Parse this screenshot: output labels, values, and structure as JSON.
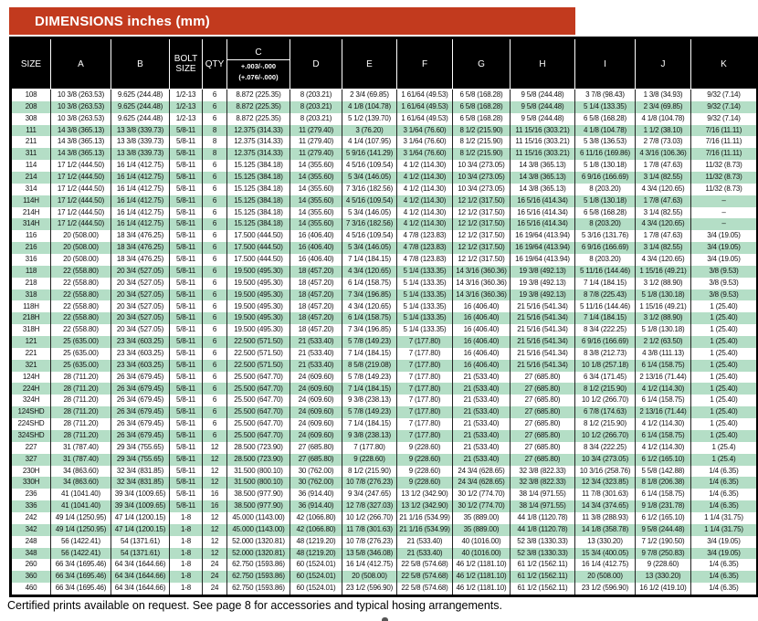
{
  "banner": {
    "title": "DIMENSIONS inches (mm)",
    "color": "#c23a1e"
  },
  "table": {
    "stripe_color": "#b4dec6",
    "headers": [
      "SIZE",
      "A",
      "B",
      "BOLT SIZE",
      "QTY",
      "C",
      "D",
      "E",
      "F",
      "G",
      "H",
      "I",
      "J",
      "K"
    ],
    "c_tolerance": [
      "+.003/-.000",
      "(+.076/-.000)"
    ],
    "rows": [
      [
        "108",
        "10 3/8 (263.53)",
        "9.625 (244.48)",
        "1/2-13",
        "6",
        "8.872 (225.35)",
        "8 (203.21)",
        "2 3/4 (69.85)",
        "1 61/64 (49.53)",
        "6 5/8 (168.28)",
        "9 5/8 (244.48)",
        "3 7/8 (98.43)",
        "1 3/8 (34.93)",
        "9/32 (7.14)"
      ],
      [
        "208",
        "10 3/8 (263.53)",
        "9.625 (244.48)",
        "1/2-13",
        "6",
        "8.872 (225.35)",
        "8 (203.21)",
        "4 1/8 (104.78)",
        "1 61/64 (49.53)",
        "6 5/8 (168.28)",
        "9 5/8 (244.48)",
        "5 1/4 (133.35)",
        "2 3/4 (69.85)",
        "9/32 (7.14)"
      ],
      [
        "308",
        "10 3/8 (263.53)",
        "9.625 (244.48)",
        "1/2-13",
        "6",
        "8.872 (225.35)",
        "8 (203.21)",
        "5 1/2 (139.70)",
        "1 61/64 (49.53)",
        "6 5/8 (168.28)",
        "9 5/8 (244.48)",
        "6 5/8 (168.28)",
        "4 1/8 (104.78)",
        "9/32 (7.14)"
      ],
      [
        "111",
        "14 3/8 (365.13)",
        "13 3/8 (339.73)",
        "5/8-11",
        "8",
        "12.375 (314.33)",
        "11 (279.40)",
        "3 (76.20)",
        "3 1/64 (76.60)",
        "8 1/2 (215.90)",
        "11 15/16 (303.21)",
        "4 1/8 (104.78)",
        "1 1/2 (38.10)",
        "7/16 (11.11)"
      ],
      [
        "211",
        "14 3/8 (365.13)",
        "13 3/8 (339.73)",
        "5/8-11",
        "8",
        "12.375 (314.33)",
        "11 (279.40)",
        "4 1/4 (107.95)",
        "3 1/64 (76.60)",
        "8 1/2 (215.90)",
        "11 15/16 (303.21)",
        "5 3/8 (136.53)",
        "2 7/8 (73.03)",
        "7/16 (11.11)"
      ],
      [
        "311",
        "14 3/8 (365.13)",
        "13 3/8 (339.73)",
        "5/8-11",
        "8",
        "12.375 (314.33)",
        "11 (279.40)",
        "5 9/16 (141.29)",
        "3 1/64 (76.60)",
        "8 1/2 (215.90)",
        "11 15/16 (303.21)",
        "6 11/16 (169.86)",
        "4 3/16 (106.36)",
        "7/16 (11.11)"
      ],
      [
        "114",
        "17 1/2 (444.50)",
        "16 1/4 (412.75)",
        "5/8-11",
        "6",
        "15.125 (384.18)",
        "14 (355.60)",
        "4 5/16 (109.54)",
        "4 1/2 (114.30)",
        "10 3/4 (273.05)",
        "14 3/8 (365.13)",
        "5 1/8 (130.18)",
        "1 7/8 (47.63)",
        "11/32 (8.73)"
      ],
      [
        "214",
        "17 1/2 (444.50)",
        "16 1/4 (412.75)",
        "5/8-11",
        "6",
        "15.125 (384.18)",
        "14 (355.60)",
        "5 3/4 (146.05)",
        "4 1/2 (114.30)",
        "10 3/4 (273.05)",
        "14 3/8 (365.13)",
        "6 9/16 (166.69)",
        "3 1/4 (82.55)",
        "11/32 (8.73)"
      ],
      [
        "314",
        "17 1/2 (444.50)",
        "16 1/4 (412.75)",
        "5/8-11",
        "6",
        "15.125 (384.18)",
        "14 (355.60)",
        "7 3/16 (182.56)",
        "4 1/2 (114.30)",
        "10 3/4 (273.05)",
        "14 3/8 (365.13)",
        "8 (203.20)",
        "4 3/4 (120.65)",
        "11/32 (8.73)"
      ],
      [
        "114H",
        "17 1/2 (444.50)",
        "16 1/4 (412.75)",
        "5/8-11",
        "6",
        "15.125 (384.18)",
        "14 (355.60)",
        "4 5/16 (109.54)",
        "4 1/2 (114.30)",
        "12 1/2 (317.50)",
        "16 5/16 (414.34)",
        "5 1/8 (130.18)",
        "1 7/8 (47.63)",
        "–"
      ],
      [
        "214H",
        "17 1/2 (444.50)",
        "16 1/4 (412.75)",
        "5/8-11",
        "6",
        "15.125 (384.18)",
        "14 (355.60)",
        "5 3/4 (146.05)",
        "4 1/2 (114.30)",
        "12 1/2 (317.50)",
        "16 5/16 (414.34)",
        "6 5/8 (168.28)",
        "3 1/4 (82.55)",
        "–"
      ],
      [
        "314H",
        "17 1/2 (444.50)",
        "16 1/4 (412.75)",
        "5/8-11",
        "6",
        "15.125 (384.18)",
        "14 (355.60)",
        "7 3/16 (182.56)",
        "4 1/2 (114.30)",
        "12 1/2 (317.50)",
        "16 5/16 (414.34)",
        "8 (203.20)",
        "4 3/4 (120.65)",
        "–"
      ],
      [
        "116",
        "20 (508.00)",
        "18 3/4 (476.25)",
        "5/8-11",
        "6",
        "17.500 (444.50)",
        "16 (406.40)",
        "4 5/16 (109.54)",
        "4 7/8 (123.83)",
        "12 1/2 (317.50)",
        "16 19/64 (413.94)",
        "5 3/16 (131.76)",
        "1 7/8 (47.63)",
        "3/4 (19.05)"
      ],
      [
        "216",
        "20 (508.00)",
        "18 3/4 (476.25)",
        "5/8-11",
        "6",
        "17.500 (444.50)",
        "16 (406.40)",
        "5 3/4 (146.05)",
        "4 7/8 (123.83)",
        "12 1/2 (317.50)",
        "16 19/64 (413.94)",
        "6 9/16 (166.69)",
        "3 1/4 (82.55)",
        "3/4 (19.05)"
      ],
      [
        "316",
        "20 (508.00)",
        "18 3/4 (476.25)",
        "5/8-11",
        "6",
        "17.500 (444.50)",
        "16 (406.40)",
        "7 1/4 (184.15)",
        "4 7/8 (123.83)",
        "12 1/2 (317.50)",
        "16 19/64 (413.94)",
        "8 (203.20)",
        "4 3/4 (120.65)",
        "3/4 (19.05)"
      ],
      [
        "118",
        "22 (558.80)",
        "20 3/4 (527.05)",
        "5/8-11",
        "6",
        "19.500 (495.30)",
        "18 (457.20)",
        "4 3/4 (120.65)",
        "5 1/4 (133.35)",
        "14 3/16 (360.36)",
        "19 3/8 (492.13)",
        "5 11/16 (144.46)",
        "1 15/16 (49.21)",
        "3/8 (9.53)"
      ],
      [
        "218",
        "22 (558.80)",
        "20 3/4 (527.05)",
        "5/8-11",
        "6",
        "19.500 (495.30)",
        "18 (457.20)",
        "6 1/4 (158.75)",
        "5 1/4 (133.35)",
        "14 3/16 (360.36)",
        "19 3/8 (492.13)",
        "7 1/4 (184.15)",
        "3 1/2 (88.90)",
        "3/8 (9.53)"
      ],
      [
        "318",
        "22 (558.80)",
        "20 3/4 (527.05)",
        "5/8-11",
        "6",
        "19.500 (495.30)",
        "18 (457.20)",
        "7 3/4 (196.85)",
        "5 1/4 (133.35)",
        "14 3/16 (360.36)",
        "19 3/8 (492.13)",
        "8 7/8 (225.43)",
        "5 1/8 (130.18)",
        "3/8 (9.53)"
      ],
      [
        "118H",
        "22 (558.80)",
        "20 3/4 (527.05)",
        "5/8-11",
        "6",
        "19.500 (495.30)",
        "18 (457.20)",
        "4 3/4 (120.65)",
        "5 1/4 (133.35)",
        "16 (406.40)",
        "21 5/16 (541.34)",
        "5 11/16 (144.46)",
        "1 15/16 (49.21)",
        "1 (25.40)"
      ],
      [
        "218H",
        "22 (558.80)",
        "20 3/4 (527.05)",
        "5/8-11",
        "6",
        "19.500 (495.30)",
        "18 (457.20)",
        "6 1/4 (158.75)",
        "5 1/4 (133.35)",
        "16 (406.40)",
        "21 5/16 (541.34)",
        "7 1/4 (184.15)",
        "3 1/2 (88.90)",
        "1 (25.40)"
      ],
      [
        "318H",
        "22 (558.80)",
        "20 3/4 (527.05)",
        "5/8-11",
        "6",
        "19.500 (495.30)",
        "18 (457.20)",
        "7 3/4 (196.85)",
        "5 1/4 (133.35)",
        "16 (406.40)",
        "21 5/16 (541.34)",
        "8 3/4 (222.25)",
        "5 1/8 (130.18)",
        "1 (25.40)"
      ],
      [
        "121",
        "25 (635.00)",
        "23 3/4 (603.25)",
        "5/8-11",
        "6",
        "22.500 (571.50)",
        "21 (533.40)",
        "5 7/8 (149.23)",
        "7 (177.80)",
        "16 (406.40)",
        "21 5/16 (541.34)",
        "6 9/16 (166.69)",
        "2 1/2 (63.50)",
        "1 (25.40)"
      ],
      [
        "221",
        "25 (635.00)",
        "23 3/4 (603.25)",
        "5/8-11",
        "6",
        "22.500 (571.50)",
        "21 (533.40)",
        "7 1/4 (184.15)",
        "7 (177.80)",
        "16 (406.40)",
        "21 5/16 (541.34)",
        "8 3/8 (212.73)",
        "4 3/8 (111.13)",
        "1 (25.40)"
      ],
      [
        "321",
        "25 (635.00)",
        "23 3/4 (603.25)",
        "5/8-11",
        "6",
        "22.500 (571.50)",
        "21 (533.40)",
        "8 5/8 (219.08)",
        "7 (177.80)",
        "16 (406.40)",
        "21 5/16 (541.34)",
        "10 1/8 (257.18)",
        "6 1/4 (158.75)",
        "1 (25.40)"
      ],
      [
        "124H",
        "28 (711.20)",
        "26 3/4 (679.45)",
        "5/8-11",
        "6",
        "25.500 (647.70)",
        "24 (609.60)",
        "5 7/8 (149.23)",
        "7 (177.80)",
        "21 (533.40)",
        "27 (685.80)",
        "6 3/4 (171.45)",
        "2 13/16 (71.44)",
        "1 (25.40)"
      ],
      [
        "224H",
        "28 (711.20)",
        "26 3/4 (679.45)",
        "5/8-11",
        "6",
        "25.500 (647.70)",
        "24 (609.60)",
        "7 1/4 (184.15)",
        "7 (177.80)",
        "21 (533.40)",
        "27 (685.80)",
        "8 1/2 (215.90)",
        "4 1/2 (114.30)",
        "1 (25.40)"
      ],
      [
        "324H",
        "28 (711.20)",
        "26 3/4 (679.45)",
        "5/8-11",
        "6",
        "25.500 (647.70)",
        "24 (609.60)",
        "9 3/8 (238.13)",
        "7 (177.80)",
        "21 (533.40)",
        "27 (685.80)",
        "10 1/2 (266.70)",
        "6 1/4 (158.75)",
        "1 (25.40)"
      ],
      [
        "124SHD",
        "28 (711.20)",
        "26 3/4 (679.45)",
        "5/8-11",
        "6",
        "25.500 (647.70)",
        "24 (609.60)",
        "5 7/8 (149.23)",
        "7 (177.80)",
        "21 (533.40)",
        "27 (685.80)",
        "6 7/8 (174.63)",
        "2 13/16 (71.44)",
        "1 (25.40)"
      ],
      [
        "224SHD",
        "28 (711.20)",
        "26 3/4 (679.45)",
        "5/8-11",
        "6",
        "25.500 (647.70)",
        "24 (609.60)",
        "7 1/4 (184.15)",
        "7 (177.80)",
        "21 (533.40)",
        "27 (685.80)",
        "8 1/2 (215.90)",
        "4 1/2 (114.30)",
        "1 (25.40)"
      ],
      [
        "324SHD",
        "28 (711.20)",
        "26 3/4 (679.45)",
        "5/8-11",
        "6",
        "25.500 (647.70)",
        "24 (609.60)",
        "9 3/8 (238.13)",
        "7 (177.80)",
        "21 (533.40)",
        "27 (685.80)",
        "10 1/2 (266.70)",
        "6 1/4 (158.75)",
        "1 (25.40)"
      ],
      [
        "227",
        "31 (787.40)",
        "29 3/4 (755.65)",
        "5/8-11",
        "12",
        "28.500 (723.90)",
        "27 (685.80)",
        "7 (177.80)",
        "9 (228.60)",
        "21 (533.40)",
        "27 (685.80)",
        "8 3/4 (222.25)",
        "4 1/2 (114.30)",
        "1 (25.4)"
      ],
      [
        "327",
        "31 (787.40)",
        "29 3/4 (755.65)",
        "5/8-11",
        "12",
        "28.500 (723.90)",
        "27 (685.80)",
        "9 (228.60)",
        "9 (228.60)",
        "21 (533.40)",
        "27 (685.80)",
        "10 3/4 (273.05)",
        "6 1/2 (165.10)",
        "1 (25.4)"
      ],
      [
        "230H",
        "34 (863.60)",
        "32 3/4 (831.85)",
        "5/8-11",
        "12",
        "31.500 (800.10)",
        "30 (762.00)",
        "8 1/2 (215.90)",
        "9 (228.60)",
        "24 3/4 (628.65)",
        "32 3/8 (822.33)",
        "10 3/16 (258.76)",
        "5 5/8 (142.88)",
        "1/4 (6.35)"
      ],
      [
        "330H",
        "34 (863.60)",
        "32 3/4 (831.85)",
        "5/8-11",
        "12",
        "31.500 (800.10)",
        "30 (762.00)",
        "10 7/8 (276.23)",
        "9 (228.60)",
        "24 3/4 (628.65)",
        "32 3/8 (822.33)",
        "12 3/4 (323.85)",
        "8 1/8 (206.38)",
        "1/4 (6.35)"
      ],
      [
        "236",
        "41 (1041.40)",
        "39 3/4 (1009.65)",
        "5/8-11",
        "16",
        "38.500 (977.90)",
        "36 (914.40)",
        "9 3/4 (247.65)",
        "13 1/2 (342.90)",
        "30 1/2 (774.70)",
        "38 1/4 (971.55)",
        "11 7/8 (301.63)",
        "6 1/4 (158.75)",
        "1/4 (6.35)"
      ],
      [
        "336",
        "41 (1041.40)",
        "39 3/4 (1009.65)",
        "5/8-11",
        "16",
        "38.500 (977.90)",
        "36 (914.40)",
        "12 7/8 (327.03)",
        "13 1/2 (342.90)",
        "30 1/2 (774.70)",
        "38 1/4 (971.55)",
        "14 3/4 (374.65)",
        "9 1/8 (231.78)",
        "1/4 (6.35)"
      ],
      [
        "242",
        "49 1/4 (1250.95)",
        "47 1/4 (1200.15)",
        "1-8",
        "12",
        "45.000 (1143.00)",
        "42 (1066.80)",
        "10 1/2 (266.70)",
        "21 1/16 (534.99)",
        "35 (889.00)",
        "44 1/8 (1120.78)",
        "11 3/8 (288.93)",
        "6 1/2 (165.10)",
        "1 1/4 (31.75)"
      ],
      [
        "342",
        "49 1/4 (1250.95)",
        "47 1/4 (1200.15)",
        "1-8",
        "12",
        "45.000 (1143.00)",
        "42 (1066.80)",
        "11 7/8 (301.63)",
        "21 1/16 (534.99)",
        "35 (889.00)",
        "44 1/8 (1120.78)",
        "14 1/8 (358.78)",
        "9 5/8 (244.48)",
        "1 1/4 (31.75)"
      ],
      [
        "248",
        "56 (1422.41)",
        "54 (1371.61)",
        "1-8",
        "12",
        "52.000 (1320.81)",
        "48 (1219.20)",
        "10 7/8 (276.23)",
        "21 (533.40)",
        "40 (1016.00)",
        "52 3/8 (1330.33)",
        "13 (330.20)",
        "7 1/2 (190.50)",
        "3/4 (19.05)"
      ],
      [
        "348",
        "56 (1422.41)",
        "54 (1371.61)",
        "1-8",
        "12",
        "52.000 (1320.81)",
        "48 (1219.20)",
        "13 5/8 (346.08)",
        "21 (533.40)",
        "40 (1016.00)",
        "52 3/8 (1330.33)",
        "15 3/4 (400.05)",
        "9 7/8 (250.83)",
        "3/4 (19.05)"
      ],
      [
        "260",
        "66 3/4 (1695.46)",
        "64 3/4 (1644.66)",
        "1-8",
        "24",
        "62.750 (1593.86)",
        "60 (1524.01)",
        "16 1/4 (412.75)",
        "22 5/8 (574.68)",
        "46 1/2 (1181.10)",
        "61 1/2 (1562.11)",
        "16 1/4 (412.75)",
        "9 (228.60)",
        "1/4 (6.35)"
      ],
      [
        "360",
        "66 3/4 (1695.46)",
        "64 3/4 (1644.66)",
        "1-8",
        "24",
        "62.750 (1593.86)",
        "60 (1524.01)",
        "20 (508.00)",
        "22 5/8 (574.68)",
        "46 1/2 (1181.10)",
        "61 1/2 (1562.11)",
        "20 (508.00)",
        "13 (330.20)",
        "1/4 (6.35)"
      ],
      [
        "460",
        "66 3/4 (1695.46)",
        "64 3/4 (1644.66)",
        "1-8",
        "24",
        "62.750 (1593.86)",
        "60 (1524.01)",
        "23 1/2 (596.90)",
        "22 5/8 (574.68)",
        "46 1/2 (1181.10)",
        "61 1/2 (1562.11)",
        "23 1/2 (596.90)",
        "16 1/2 (419.10)",
        "1/4 (6.35)"
      ]
    ]
  },
  "footer": {
    "note": "Certified prints available on request. See page 8 for accessories and typical hosing arrangements."
  }
}
